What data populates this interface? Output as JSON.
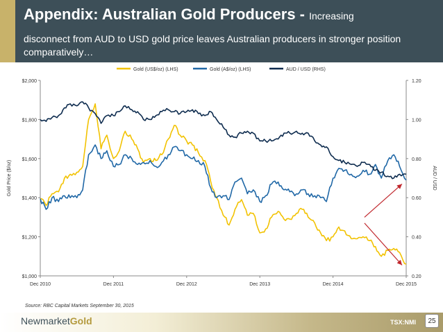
{
  "header": {
    "title_main": "Appendix: Australian Gold Producers - ",
    "title_sub_inline": "Increasing",
    "title_sub_rest": "disconnect from AUD to USD gold price leaves Australian producers in stronger position comparatively…"
  },
  "chart_data": {
    "type": "line",
    "title": "",
    "legend": [
      "Gold (US$/oz) (LHS)",
      "Gold (A$/oz) (LHS)",
      "AUD / USD (RHS)"
    ],
    "legend_position": "top-center",
    "ylabel": "Gold Price ($/oz)",
    "y2label": "AUD / USD",
    "ylim": [
      1000,
      2000
    ],
    "y2lim": [
      0.2,
      1.2
    ],
    "xlim": [
      2010.92,
      2015.92
    ],
    "y_ticks": [
      "$1,000",
      "$1,200",
      "$1,400",
      "$1,600",
      "$1,800",
      "$2,000"
    ],
    "y2_ticks": [
      "0.20",
      "0.40",
      "0.60",
      "0.80",
      "1.00",
      "1.20"
    ],
    "x_ticks": [
      "Dec 2010",
      "Dec 2011",
      "Dec 2012",
      "Dec 2013",
      "Dec 2014",
      "Dec 2015"
    ],
    "series": [
      {
        "name": "Gold (US$/oz) (LHS)",
        "color": "#f2c200",
        "x": [
          2010.92,
          2011.0,
          2011.08,
          2011.17,
          2011.25,
          2011.33,
          2011.42,
          2011.5,
          2011.58,
          2011.67,
          2011.75,
          2011.83,
          2011.92,
          2012.0,
          2012.08,
          2012.17,
          2012.25,
          2012.33,
          2012.42,
          2012.5,
          2012.58,
          2012.67,
          2012.75,
          2012.83,
          2012.92,
          2013.0,
          2013.08,
          2013.17,
          2013.25,
          2013.33,
          2013.42,
          2013.5,
          2013.58,
          2013.67,
          2013.75,
          2013.83,
          2013.92,
          2014.0,
          2014.08,
          2014.17,
          2014.25,
          2014.33,
          2014.42,
          2014.5,
          2014.58,
          2014.67,
          2014.75,
          2014.83,
          2014.92,
          2015.0,
          2015.08,
          2015.17,
          2015.25,
          2015.33,
          2015.42,
          2015.5,
          2015.58,
          2015.67,
          2015.75,
          2015.83,
          2015.92
        ],
        "values": [
          1395,
          1360,
          1420,
          1430,
          1500,
          1520,
          1530,
          1560,
          1800,
          1880,
          1650,
          1720,
          1600,
          1640,
          1740,
          1700,
          1650,
          1580,
          1600,
          1590,
          1620,
          1700,
          1770,
          1720,
          1690,
          1670,
          1630,
          1590,
          1480,
          1400,
          1310,
          1260,
          1340,
          1390,
          1310,
          1320,
          1220,
          1240,
          1300,
          1330,
          1290,
          1290,
          1320,
          1340,
          1300,
          1270,
          1220,
          1180,
          1200,
          1250,
          1230,
          1190,
          1190,
          1200,
          1180,
          1150,
          1100,
          1130,
          1140,
          1120,
          1060
        ]
      },
      {
        "name": "Gold (A$/oz) (LHS)",
        "color": "#1f67a6",
        "x": [
          2010.92,
          2011.0,
          2011.08,
          2011.17,
          2011.25,
          2011.33,
          2011.42,
          2011.5,
          2011.58,
          2011.67,
          2011.75,
          2011.83,
          2011.92,
          2012.0,
          2012.08,
          2012.17,
          2012.25,
          2012.33,
          2012.42,
          2012.5,
          2012.58,
          2012.67,
          2012.75,
          2012.83,
          2012.92,
          2013.0,
          2013.08,
          2013.17,
          2013.25,
          2013.33,
          2013.42,
          2013.5,
          2013.58,
          2013.67,
          2013.75,
          2013.83,
          2013.92,
          2014.0,
          2014.08,
          2014.17,
          2014.25,
          2014.33,
          2014.42,
          2014.5,
          2014.58,
          2014.67,
          2014.75,
          2014.83,
          2014.92,
          2015.0,
          2015.08,
          2015.17,
          2015.25,
          2015.33,
          2015.42,
          2015.5,
          2015.58,
          2015.67,
          2015.75,
          2015.83,
          2015.92
        ],
        "values": [
          1395,
          1340,
          1400,
          1380,
          1410,
          1400,
          1400,
          1440,
          1620,
          1670,
          1600,
          1640,
          1560,
          1570,
          1620,
          1600,
          1570,
          1580,
          1590,
          1560,
          1580,
          1620,
          1660,
          1640,
          1620,
          1600,
          1590,
          1560,
          1450,
          1400,
          1410,
          1390,
          1480,
          1500,
          1420,
          1440,
          1380,
          1410,
          1470,
          1480,
          1440,
          1430,
          1420,
          1440,
          1420,
          1410,
          1400,
          1380,
          1500,
          1550,
          1540,
          1520,
          1510,
          1540,
          1520,
          1570,
          1500,
          1590,
          1620,
          1560,
          1490
        ]
      },
      {
        "name": "AUD / USD (RHS)",
        "color": "#0d2b4e",
        "x": [
          2010.92,
          2011.0,
          2011.08,
          2011.17,
          2011.25,
          2011.33,
          2011.42,
          2011.5,
          2011.58,
          2011.67,
          2011.75,
          2011.83,
          2011.92,
          2012.0,
          2012.08,
          2012.17,
          2012.25,
          2012.33,
          2012.42,
          2012.5,
          2012.58,
          2012.67,
          2012.75,
          2012.83,
          2012.92,
          2013.0,
          2013.08,
          2013.17,
          2013.25,
          2013.33,
          2013.42,
          2013.5,
          2013.58,
          2013.67,
          2013.75,
          2013.83,
          2013.92,
          2014.0,
          2014.08,
          2014.17,
          2014.25,
          2014.33,
          2014.42,
          2014.5,
          2014.58,
          2014.67,
          2014.75,
          2014.83,
          2014.92,
          2015.0,
          2015.08,
          2015.17,
          2015.25,
          2015.33,
          2015.42,
          2015.5,
          2015.58,
          2015.67,
          2015.75,
          2015.83,
          2015.92
        ],
        "values": [
          1.0,
          0.99,
          1.01,
          1.02,
          1.06,
          1.08,
          1.07,
          1.09,
          1.06,
          1.03,
          0.98,
          1.02,
          1.02,
          1.04,
          1.07,
          1.05,
          1.04,
          1.0,
          1.0,
          1.02,
          1.04,
          1.05,
          1.04,
          1.03,
          1.04,
          1.05,
          1.03,
          1.02,
          1.04,
          1.0,
          0.96,
          0.92,
          0.91,
          0.93,
          0.94,
          0.93,
          0.89,
          0.89,
          0.89,
          0.9,
          0.93,
          0.93,
          0.94,
          0.93,
          0.93,
          0.89,
          0.87,
          0.86,
          0.81,
          0.79,
          0.78,
          0.77,
          0.76,
          0.78,
          0.77,
          0.74,
          0.73,
          0.71,
          0.7,
          0.72,
          0.72
        ]
      }
    ],
    "annotations": [
      {
        "type": "arrow",
        "color": "#c0272d",
        "from": [
          2015.35,
          1300
        ],
        "to": [
          2015.92,
          1470
        ]
      },
      {
        "type": "arrow",
        "color": "#c0272d",
        "from": [
          2015.35,
          1270
        ],
        "to": [
          2015.92,
          1055
        ]
      }
    ]
  },
  "source": "Source: RBC Capital Markets September 30, 2015",
  "footer": {
    "logo_part1": "Newmarket",
    "logo_part2": "Gold",
    "ticker": "TSX:NMI",
    "page": "25"
  }
}
